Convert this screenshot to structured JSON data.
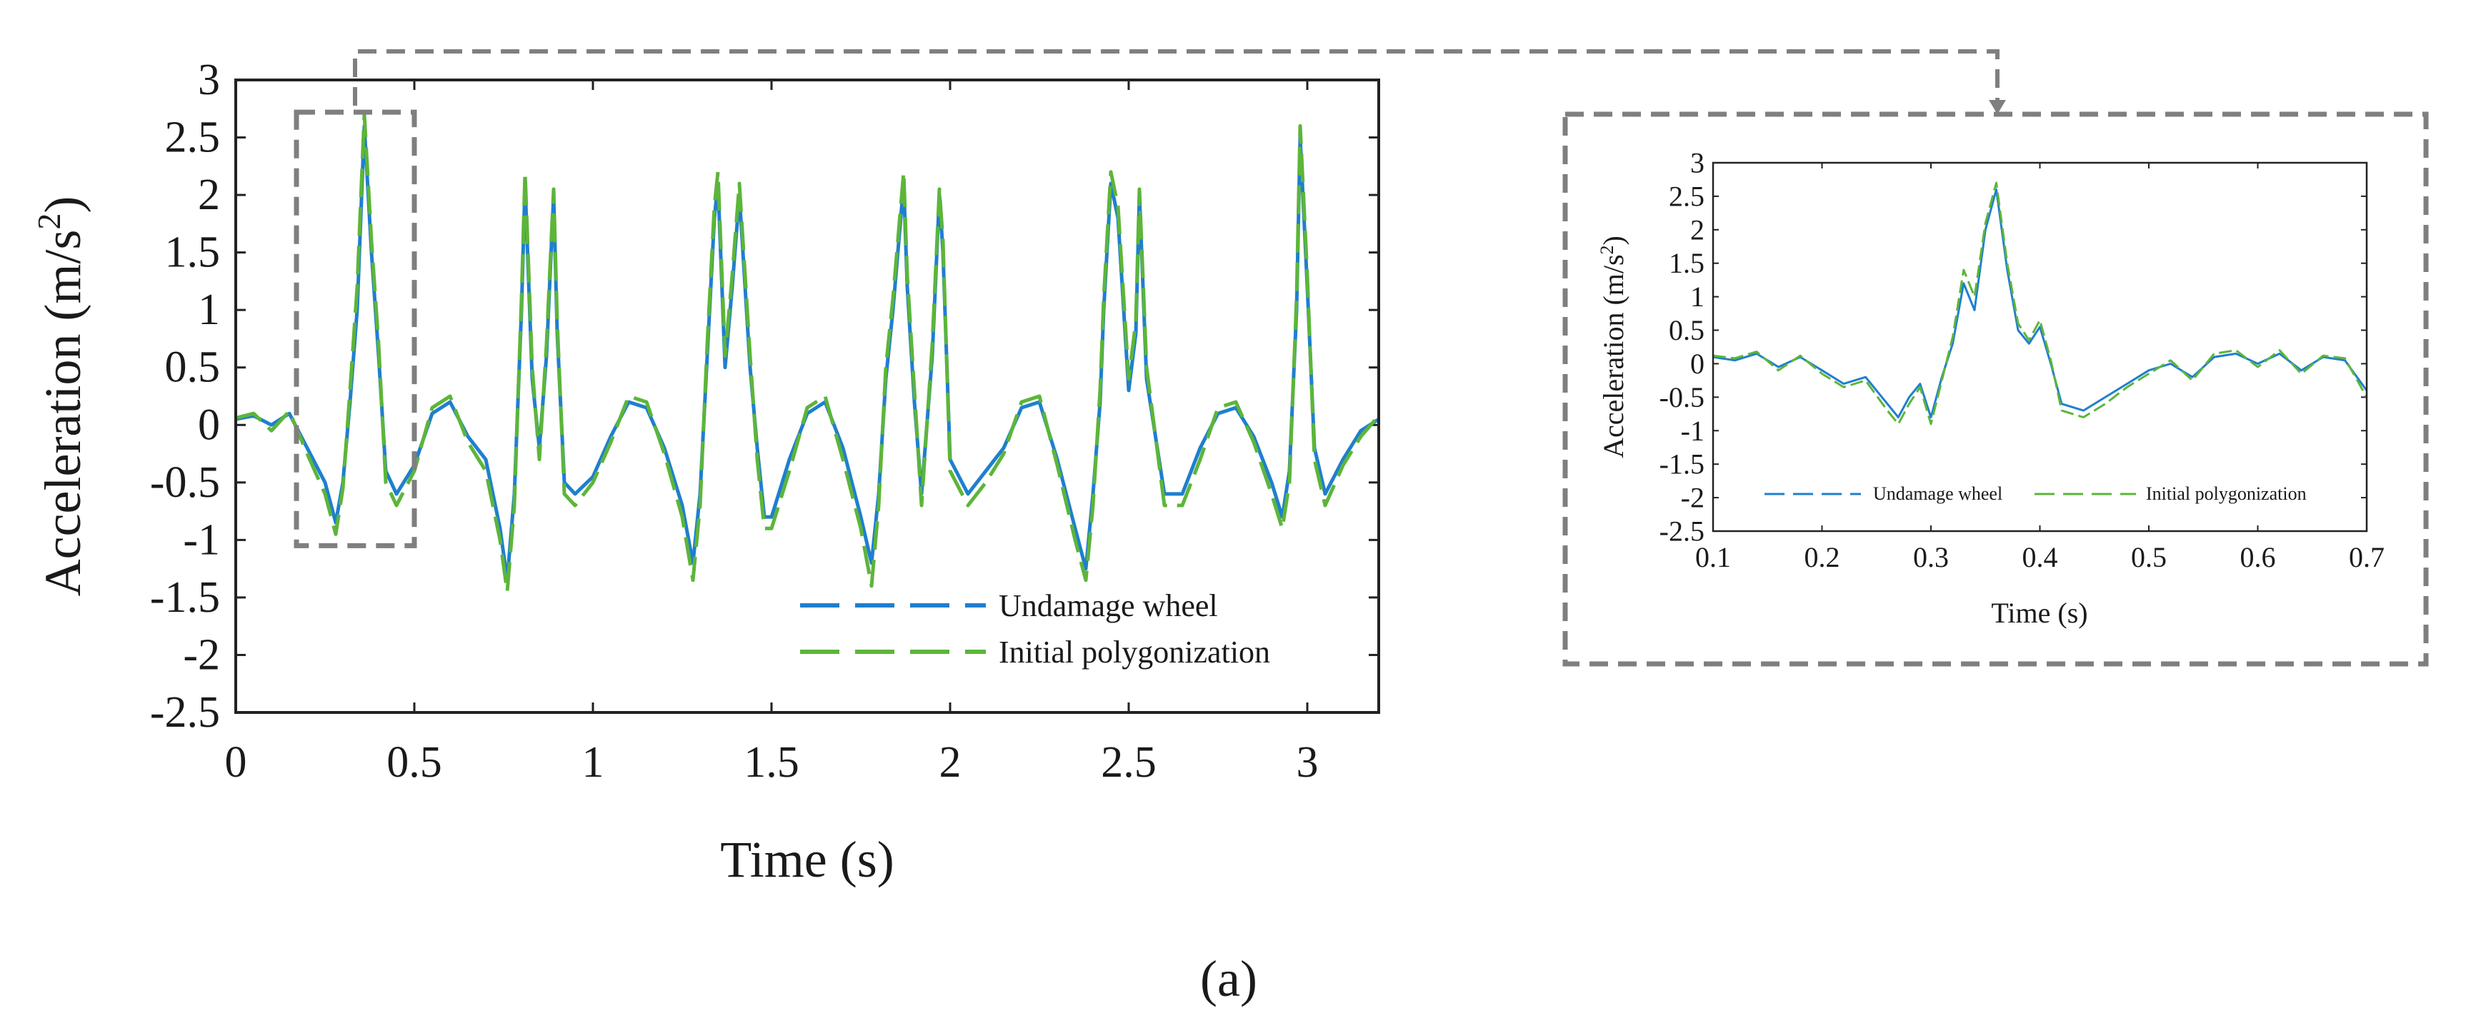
{
  "caption": "(a)",
  "colors": {
    "undamaged": "#1f7fce",
    "polygonization": "#5db53a",
    "frame": "#7f7f7f",
    "axis": "#222222"
  },
  "chart_data": [
    {
      "id": "main",
      "type": "line",
      "xlabel": "Time (s)",
      "ylabel": "Acceleration (m/s",
      "ylabel_sup": "2",
      "ylabel_close": ")",
      "xlim": [
        0,
        3.2
      ],
      "ylim": [
        -2.5,
        3
      ],
      "xticks": [
        0,
        0.5,
        1,
        1.5,
        2,
        2.5,
        3
      ],
      "xtick_labels": [
        "0",
        "0.5",
        "1",
        "1.5",
        "2",
        "2.5",
        "3"
      ],
      "yticks": [
        -2.5,
        -2,
        -1.5,
        -1,
        -0.5,
        0,
        0.5,
        1,
        1.5,
        2,
        2.5,
        3
      ],
      "ytick_labels": [
        "-2.5",
        "-2",
        "-1.5",
        "-1",
        "-0.5",
        "0",
        "0.5",
        "1",
        "1.5",
        "2",
        "2.5",
        "3"
      ],
      "legend": [
        "Undamage wheel",
        "Initial polygonization"
      ],
      "legend_position": "bottom-right",
      "zoom_region": {
        "x": [
          0.17,
          0.5
        ],
        "y": [
          -1.05,
          2.72
        ]
      },
      "series": [
        {
          "name": "Undamage wheel",
          "x": [
            0,
            0.05,
            0.1,
            0.15,
            0.2,
            0.25,
            0.28,
            0.3,
            0.32,
            0.34,
            0.36,
            0.38,
            0.4,
            0.42,
            0.45,
            0.5,
            0.55,
            0.6,
            0.65,
            0.7,
            0.74,
            0.76,
            0.78,
            0.8,
            0.81,
            0.83,
            0.85,
            0.87,
            0.89,
            0.9,
            0.92,
            0.95,
            1,
            1.05,
            1.1,
            1.15,
            1.2,
            1.25,
            1.28,
            1.3,
            1.32,
            1.34,
            1.35,
            1.37,
            1.39,
            1.41,
            1.44,
            1.46,
            1.48,
            1.5,
            1.55,
            1.6,
            1.65,
            1.7,
            1.75,
            1.78,
            1.8,
            1.82,
            1.84,
            1.87,
            1.88,
            1.9,
            1.92,
            1.95,
            1.97,
            1.98,
            2,
            2.05,
            2.1,
            2.15,
            2.2,
            2.25,
            2.3,
            2.35,
            2.38,
            2.4,
            2.42,
            2.43,
            2.45,
            2.47,
            2.5,
            2.52,
            2.53,
            2.55,
            2.6,
            2.65,
            2.7,
            2.75,
            2.8,
            2.85,
            2.9,
            2.93,
            2.95,
            2.97,
            2.98,
            3,
            3.02,
            3.05,
            3.1,
            3.15,
            3.2
          ],
          "y": [
            0.05,
            0.08,
            0.0,
            0.1,
            -0.2,
            -0.5,
            -0.85,
            -0.5,
            0.2,
            1.0,
            2.6,
            1.5,
            0.6,
            -0.4,
            -0.6,
            -0.35,
            0.1,
            0.2,
            -0.1,
            -0.3,
            -0.9,
            -1.35,
            -0.6,
            1.0,
            2.1,
            0.4,
            -0.2,
            0.6,
            2.0,
            0.8,
            -0.5,
            -0.6,
            -0.45,
            -0.1,
            0.2,
            0.15,
            -0.2,
            -0.7,
            -1.2,
            -0.6,
            0.6,
            1.8,
            2.1,
            0.5,
            1.2,
            2.0,
            0.5,
            -0.2,
            -0.8,
            -0.8,
            -0.3,
            0.1,
            0.2,
            -0.2,
            -0.8,
            -1.2,
            -0.6,
            0.4,
            1.0,
            2.1,
            1.2,
            0.2,
            -0.6,
            0.6,
            2.0,
            1.5,
            -0.3,
            -0.6,
            -0.4,
            -0.2,
            0.15,
            0.2,
            -0.3,
            -0.9,
            -1.25,
            -0.6,
            0.2,
            1.0,
            2.1,
            1.8,
            0.3,
            0.8,
            2.0,
            0.4,
            -0.6,
            -0.6,
            -0.2,
            0.1,
            0.15,
            -0.1,
            -0.5,
            -0.8,
            -0.4,
            1.0,
            2.5,
            1.2,
            -0.2,
            -0.6,
            -0.3,
            -0.05,
            0.05
          ]
        },
        {
          "name": "Initial polygonization",
          "x": [
            0,
            0.05,
            0.1,
            0.15,
            0.2,
            0.25,
            0.28,
            0.3,
            0.32,
            0.34,
            0.36,
            0.38,
            0.4,
            0.42,
            0.45,
            0.5,
            0.55,
            0.6,
            0.65,
            0.7,
            0.74,
            0.76,
            0.78,
            0.8,
            0.81,
            0.83,
            0.85,
            0.87,
            0.89,
            0.9,
            0.92,
            0.95,
            1,
            1.05,
            1.1,
            1.15,
            1.2,
            1.25,
            1.28,
            1.3,
            1.32,
            1.34,
            1.35,
            1.37,
            1.39,
            1.41,
            1.44,
            1.46,
            1.48,
            1.5,
            1.55,
            1.6,
            1.65,
            1.7,
            1.75,
            1.78,
            1.8,
            1.82,
            1.84,
            1.87,
            1.88,
            1.9,
            1.92,
            1.95,
            1.97,
            1.98,
            2,
            2.05,
            2.1,
            2.15,
            2.2,
            2.25,
            2.3,
            2.35,
            2.38,
            2.4,
            2.42,
            2.43,
            2.45,
            2.47,
            2.5,
            2.52,
            2.53,
            2.55,
            2.6,
            2.65,
            2.7,
            2.75,
            2.8,
            2.85,
            2.9,
            2.93,
            2.95,
            2.97,
            2.98,
            3,
            3.02,
            3.05,
            3.1,
            3.15,
            3.2
          ],
          "y": [
            0.06,
            0.1,
            -0.05,
            0.12,
            -0.25,
            -0.6,
            -0.95,
            -0.55,
            0.3,
            1.2,
            2.7,
            1.6,
            0.7,
            -0.5,
            -0.7,
            -0.4,
            0.15,
            0.25,
            -0.15,
            -0.4,
            -1.0,
            -1.45,
            -0.7,
            1.1,
            2.2,
            0.5,
            -0.3,
            0.7,
            2.05,
            0.9,
            -0.6,
            -0.7,
            -0.5,
            -0.15,
            0.25,
            0.2,
            -0.25,
            -0.8,
            -1.35,
            -0.7,
            0.7,
            1.9,
            2.2,
            0.6,
            1.3,
            2.1,
            0.6,
            -0.3,
            -0.9,
            -0.9,
            -0.4,
            0.15,
            0.25,
            -0.3,
            -0.9,
            -1.4,
            -0.7,
            0.5,
            1.1,
            2.2,
            1.3,
            0.3,
            -0.7,
            0.7,
            2.05,
            1.6,
            -0.4,
            -0.7,
            -0.5,
            -0.25,
            0.2,
            0.25,
            -0.35,
            -1.0,
            -1.35,
            -0.7,
            0.3,
            1.1,
            2.2,
            1.9,
            0.4,
            0.9,
            2.05,
            0.5,
            -0.7,
            -0.7,
            -0.3,
            0.15,
            0.2,
            -0.15,
            -0.6,
            -0.9,
            -0.5,
            1.1,
            2.6,
            1.3,
            -0.3,
            -0.7,
            -0.35,
            -0.1,
            0.08
          ]
        }
      ]
    },
    {
      "id": "zoom",
      "type": "line",
      "xlabel": "Time (s)",
      "ylabel": "Acceleration (m/s",
      "ylabel_sup": "2",
      "ylabel_close": ")",
      "xlim": [
        0.1,
        0.7
      ],
      "ylim": [
        -2.5,
        3
      ],
      "xticks": [
        0.1,
        0.2,
        0.3,
        0.4,
        0.5,
        0.6,
        0.7
      ],
      "xtick_labels": [
        "0.1",
        "0.2",
        "0.3",
        "0.4",
        "0.5",
        "0.6",
        "0.7"
      ],
      "yticks": [
        -2.5,
        -2,
        -1.5,
        -1,
        -0.5,
        0,
        0.5,
        1,
        1.5,
        2,
        2.5,
        3
      ],
      "ytick_labels": [
        "-2.5",
        "-2",
        "-1.5",
        "-1",
        "-0.5",
        "0",
        "0.5",
        "1",
        "1.5",
        "2",
        "2.5",
        "3"
      ],
      "legend": [
        "Undamage wheel",
        "Initial polygonization"
      ],
      "legend_position": "lower-center",
      "series": [
        {
          "name": "Undamage wheel",
          "x": [
            0.1,
            0.12,
            0.14,
            0.16,
            0.18,
            0.2,
            0.22,
            0.24,
            0.26,
            0.27,
            0.28,
            0.29,
            0.3,
            0.31,
            0.32,
            0.33,
            0.34,
            0.35,
            0.36,
            0.37,
            0.38,
            0.39,
            0.4,
            0.41,
            0.42,
            0.44,
            0.46,
            0.48,
            0.5,
            0.52,
            0.54,
            0.56,
            0.58,
            0.6,
            0.62,
            0.64,
            0.66,
            0.68,
            0.7
          ],
          "y": [
            0.1,
            0.05,
            0.15,
            -0.05,
            0.1,
            -0.1,
            -0.3,
            -0.2,
            -0.6,
            -0.8,
            -0.5,
            -0.3,
            -0.8,
            -0.2,
            0.3,
            1.2,
            0.8,
            2.0,
            2.6,
            1.4,
            0.5,
            0.3,
            0.55,
            0.0,
            -0.6,
            -0.7,
            -0.5,
            -0.3,
            -0.1,
            0.0,
            -0.2,
            0.1,
            0.15,
            0.0,
            0.15,
            -0.1,
            0.1,
            0.05,
            -0.4
          ]
        },
        {
          "name": "Initial polygonization",
          "x": [
            0.1,
            0.12,
            0.14,
            0.16,
            0.18,
            0.2,
            0.22,
            0.24,
            0.26,
            0.27,
            0.28,
            0.29,
            0.3,
            0.31,
            0.32,
            0.33,
            0.34,
            0.35,
            0.36,
            0.37,
            0.38,
            0.39,
            0.4,
            0.41,
            0.42,
            0.44,
            0.46,
            0.48,
            0.5,
            0.52,
            0.54,
            0.56,
            0.58,
            0.6,
            0.62,
            0.64,
            0.66,
            0.68,
            0.7
          ],
          "y": [
            0.12,
            0.08,
            0.18,
            -0.1,
            0.12,
            -0.15,
            -0.35,
            -0.25,
            -0.7,
            -0.9,
            -0.6,
            -0.35,
            -0.9,
            -0.25,
            0.4,
            1.4,
            1.0,
            2.1,
            2.7,
            1.5,
            0.6,
            0.35,
            0.65,
            0.05,
            -0.7,
            -0.8,
            -0.6,
            -0.35,
            -0.15,
            0.05,
            -0.25,
            0.15,
            0.2,
            -0.05,
            0.2,
            -0.15,
            0.12,
            0.08,
            -0.5
          ]
        }
      ]
    }
  ]
}
